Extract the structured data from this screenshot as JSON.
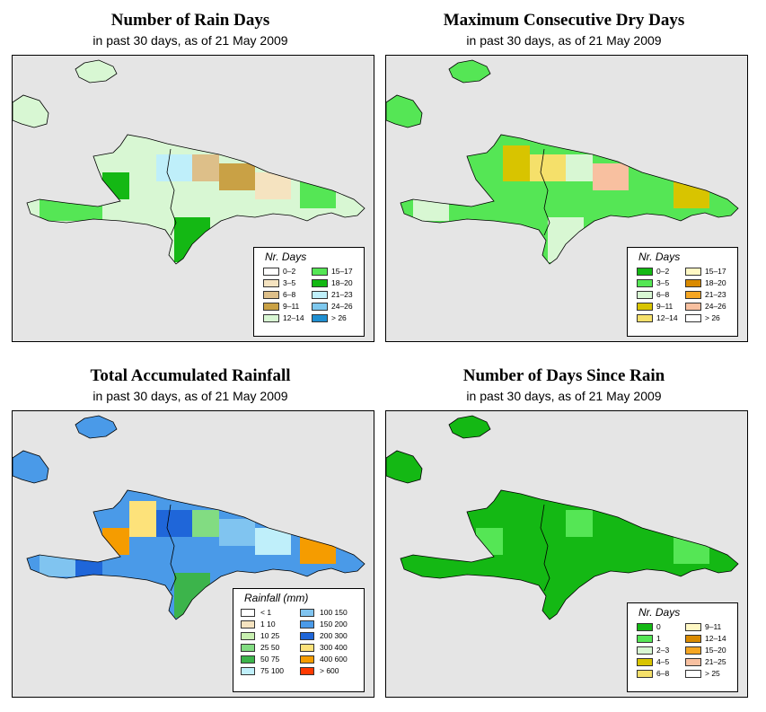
{
  "maps": [
    {
      "title": "Number of Rain Days",
      "subtitle": "in past 30 days, as of  21 May 2009",
      "legend_title": "Nr. Days",
      "legend_items": [
        {
          "label": "0–2",
          "color": "#ffffff"
        },
        {
          "label": "3–5",
          "color": "#f5e3c0"
        },
        {
          "label": "6–8",
          "color": "#ddbf89"
        },
        {
          "label": "9–11",
          "color": "#c9a145"
        },
        {
          "label": "12–14",
          "color": "#d8f7d3"
        },
        {
          "label": "15–17",
          "color": "#55e655"
        },
        {
          "label": "18–20",
          "color": "#14b814"
        },
        {
          "label": "21–23",
          "color": "#bfeffa"
        },
        {
          "label": "24–26",
          "color": "#7ec8ee"
        },
        {
          "label": "> 26",
          "color": "#1f8fd1"
        }
      ],
      "colors": {
        "water": "#e5e5e5",
        "land_base": "#d8f7d3"
      },
      "patches": [
        "#55e655",
        "#55e655",
        "#14b814",
        "#d8f7d3",
        "#bfeffa",
        "#ddbf89",
        "#c9a145",
        "#f5e3c0",
        "#55e655",
        "#14b814"
      ]
    },
    {
      "title": "Maximum Consecutive Dry Days",
      "subtitle": "in past 30 days, as of  21 May 2009",
      "legend_title": "Nr. Days",
      "legend_items": [
        {
          "label": "0–2",
          "color": "#14b814"
        },
        {
          "label": "3–5",
          "color": "#55e655"
        },
        {
          "label": "6–8",
          "color": "#d8f7d3"
        },
        {
          "label": "9–11",
          "color": "#d8c400"
        },
        {
          "label": "12–14",
          "color": "#f5e06a"
        },
        {
          "label": "15–17",
          "color": "#fff8c4"
        },
        {
          "label": "18–20",
          "color": "#d98a00"
        },
        {
          "label": "21–23",
          "color": "#f5a623"
        },
        {
          "label": "24–26",
          "color": "#f8c0a0"
        },
        {
          "label": "> 26",
          "color": "#ffffff"
        }
      ],
      "colors": {
        "water": "#e5e5e5",
        "land_base": "#55e655"
      },
      "patches": [
        "#d8f7d3",
        "#55e655",
        "#55e655",
        "#d8c400",
        "#f5e06a",
        "#d8f7d3",
        "#f8c0a0",
        "#55e655",
        "#d8c400",
        "#d8f7d3"
      ]
    },
    {
      "title": "Total Accumulated Rainfall",
      "subtitle": "in past 30 days, as of  21 May 2009",
      "legend_title": "Rainfall (mm)",
      "legend_items": [
        {
          "label": "< 1",
          "color": "#ffffff"
        },
        {
          "label": "1    10",
          "color": "#f5e3c0"
        },
        {
          "label": "10    25",
          "color": "#c8f0b0"
        },
        {
          "label": "25    50",
          "color": "#82dc82"
        },
        {
          "label": "50    75",
          "color": "#3cb44b"
        },
        {
          "label": "75   100",
          "color": "#bfeffa"
        },
        {
          "label": "100   150",
          "color": "#80c4f0"
        },
        {
          "label": "150   200",
          "color": "#4a9ae8"
        },
        {
          "label": "200   300",
          "color": "#1f66d9"
        },
        {
          "label": "300   400",
          "color": "#fde27a"
        },
        {
          "label": "400   600",
          "color": "#f59c00"
        },
        {
          "label": "> 600",
          "color": "#ff3a00"
        }
      ],
      "colors": {
        "water": "#e5e5e5",
        "land_base": "#4a9ae8"
      },
      "patches": [
        "#80c4f0",
        "#1f66d9",
        "#f59c00",
        "#fde27a",
        "#1f66d9",
        "#82dc82",
        "#80c4f0",
        "#bfeffa",
        "#f59c00",
        "#3cb44b"
      ]
    },
    {
      "title": "Number of Days Since Rain",
      "subtitle": "in past 30 days, as of  21 May 2009",
      "legend_title": "Nr. Days",
      "legend_items": [
        {
          "label": "0",
          "color": "#14b814"
        },
        {
          "label": "1",
          "color": "#55e655"
        },
        {
          "label": "2–3",
          "color": "#d8f7d3"
        },
        {
          "label": "4–5",
          "color": "#d8c400"
        },
        {
          "label": "6–8",
          "color": "#f5e06a"
        },
        {
          "label": "9–11",
          "color": "#fff8c4"
        },
        {
          "label": "12–14",
          "color": "#d98a00"
        },
        {
          "label": "15–20",
          "color": "#f5a623"
        },
        {
          "label": "21–25",
          "color": "#f8c0a0"
        },
        {
          "label": "> 25",
          "color": "#ffffff"
        }
      ],
      "colors": {
        "water": "#e5e5e5",
        "land_base": "#14b814"
      },
      "patches": [
        "#14b814",
        "#14b814",
        "#55e655",
        "#14b814",
        "#14b814",
        "#55e655",
        "#14b814",
        "#14b814",
        "#55e655",
        "#14b814"
      ]
    }
  ]
}
